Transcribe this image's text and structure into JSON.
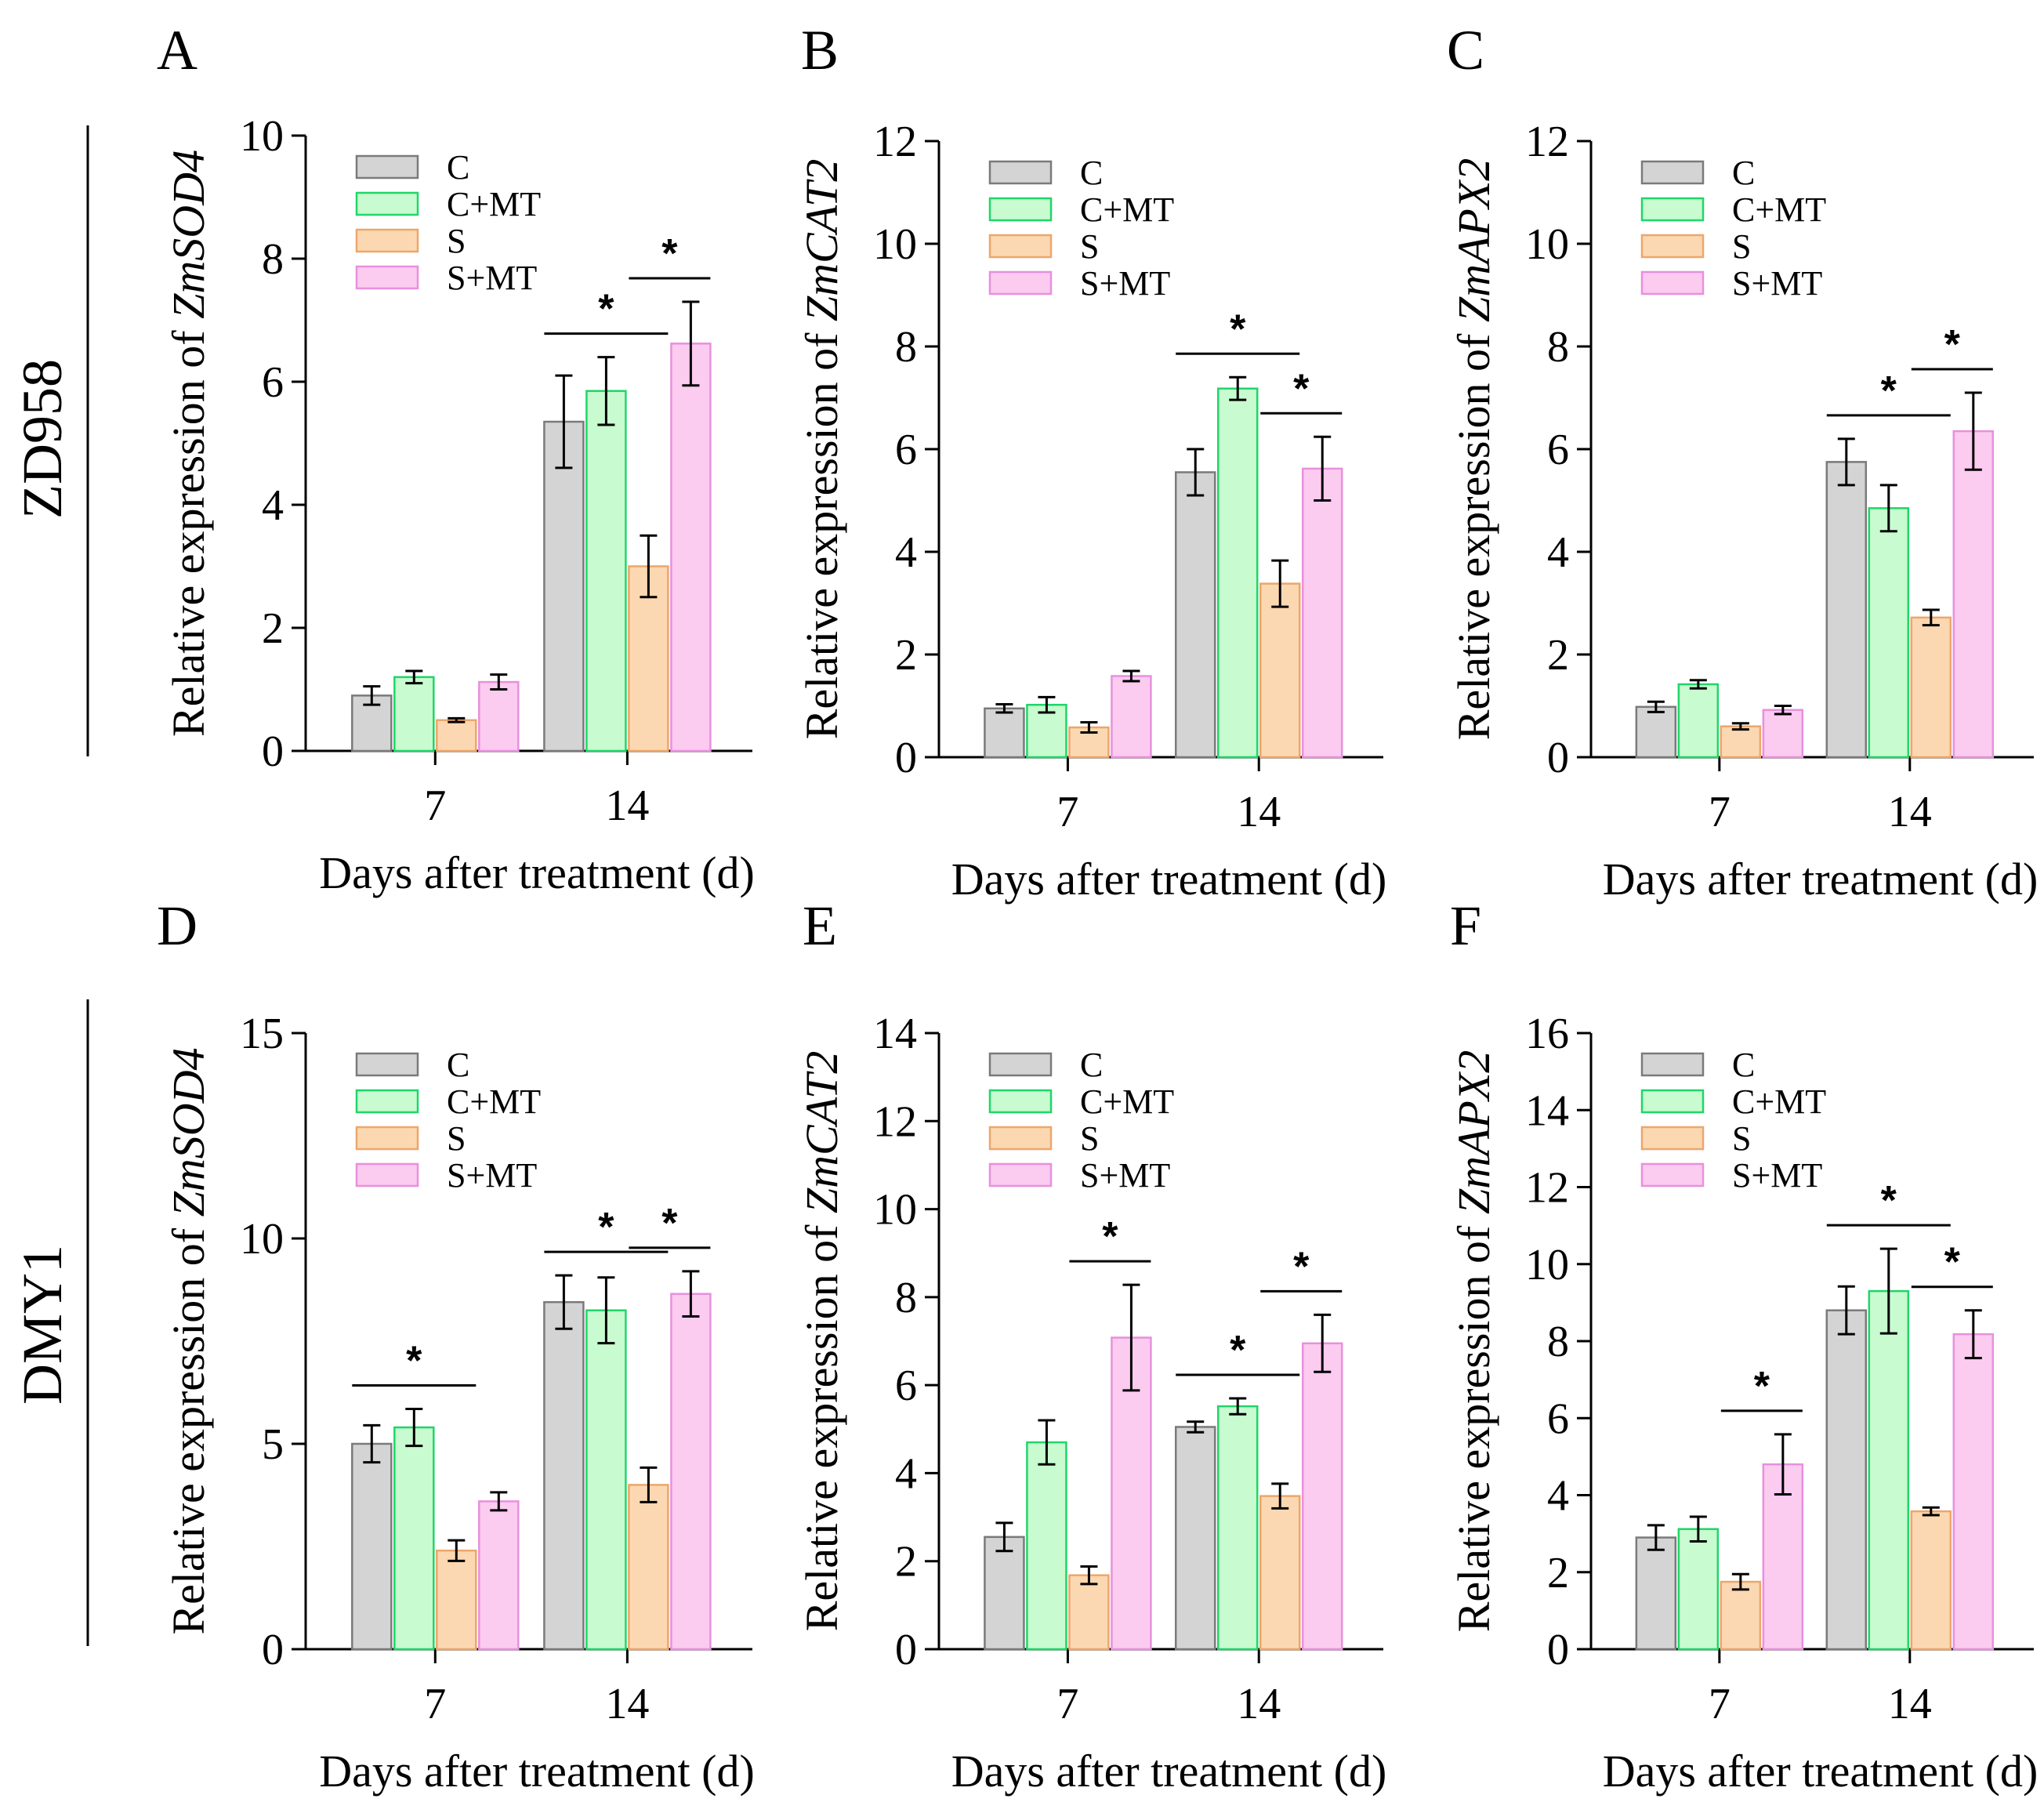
{
  "rows": [
    {
      "label": "ZD958",
      "panels": [
        0,
        1,
        2
      ]
    },
    {
      "label": "DMY1",
      "panels": [
        3,
        4,
        5
      ]
    }
  ],
  "legend": [
    {
      "label": "C",
      "fill": "#d4d4d4",
      "stroke": "#7a7a7a"
    },
    {
      "label": "C+MT",
      "fill": "#c8fbcf",
      "stroke": "#1fd66a"
    },
    {
      "label": "S",
      "fill": "#fbd8b1",
      "stroke": "#eda66b"
    },
    {
      "label": "S+MT",
      "fill": "#fbcbf0",
      "stroke": "#e890dd"
    }
  ],
  "chart_data": [
    {
      "panel": "A",
      "type": "bar",
      "ylabel_prefix": "Relative expression of ",
      "gene": "ZmSOD4",
      "xlabel": "Days after treatment (d)",
      "categories": [
        "7",
        "14"
      ],
      "ylim": [
        0,
        10
      ],
      "yticks": [
        "0",
        "2",
        "4",
        "6",
        "8",
        "10"
      ],
      "series": [
        {
          "name": "C",
          "values": [
            0.9,
            5.35
          ],
          "errors": [
            0.15,
            0.75
          ]
        },
        {
          "name": "C+MT",
          "values": [
            1.2,
            5.85
          ],
          "errors": [
            0.1,
            0.55
          ]
        },
        {
          "name": "S",
          "values": [
            0.5,
            3.0
          ],
          "errors": [
            0.03,
            0.5
          ]
        },
        {
          "name": "S+MT",
          "values": [
            1.12,
            6.62
          ],
          "errors": [
            0.12,
            0.68
          ]
        }
      ],
      "significance": [
        {
          "category": 1,
          "from": "C",
          "to": "S",
          "label": "*"
        },
        {
          "category": 1,
          "from": "S",
          "to": "S+MT",
          "label": "*"
        }
      ]
    },
    {
      "panel": "B",
      "type": "bar",
      "ylabel_prefix": "Relative expression of ",
      "gene": "ZmCAT2",
      "xlabel": "Days after treatment (d)",
      "categories": [
        "7",
        "14"
      ],
      "ylim": [
        0,
        12
      ],
      "yticks": [
        "0",
        "2",
        "4",
        "6",
        "8",
        "10",
        "12"
      ],
      "series": [
        {
          "name": "C",
          "values": [
            0.95,
            5.55
          ],
          "errors": [
            0.08,
            0.45
          ]
        },
        {
          "name": "C+MT",
          "values": [
            1.02,
            7.18
          ],
          "errors": [
            0.15,
            0.22
          ]
        },
        {
          "name": "S",
          "values": [
            0.58,
            3.38
          ],
          "errors": [
            0.1,
            0.45
          ]
        },
        {
          "name": "S+MT",
          "values": [
            1.58,
            5.62
          ],
          "errors": [
            0.1,
            0.62
          ]
        }
      ],
      "significance": [
        {
          "category": 1,
          "from": "C",
          "to": "S",
          "label": "*"
        },
        {
          "category": 1,
          "from": "S",
          "to": "S+MT",
          "label": "*"
        }
      ]
    },
    {
      "panel": "C",
      "type": "bar",
      "ylabel_prefix": "Relative expression of ",
      "gene": "ZmAPX2",
      "xlabel": "Days after treatment (d)",
      "categories": [
        "7",
        "14"
      ],
      "ylim": [
        0,
        12
      ],
      "yticks": [
        "0",
        "2",
        "4",
        "6",
        "8",
        "10",
        "12"
      ],
      "series": [
        {
          "name": "C",
          "values": [
            0.98,
            5.75
          ],
          "errors": [
            0.1,
            0.45
          ]
        },
        {
          "name": "C+MT",
          "values": [
            1.42,
            4.85
          ],
          "errors": [
            0.08,
            0.45
          ]
        },
        {
          "name": "S",
          "values": [
            0.6,
            2.72
          ],
          "errors": [
            0.06,
            0.15
          ]
        },
        {
          "name": "S+MT",
          "values": [
            0.92,
            6.35
          ],
          "errors": [
            0.08,
            0.75
          ]
        }
      ],
      "significance": [
        {
          "category": 1,
          "from": "C",
          "to": "S",
          "label": "*"
        },
        {
          "category": 1,
          "from": "S",
          "to": "S+MT",
          "label": "*"
        }
      ]
    },
    {
      "panel": "D",
      "type": "bar",
      "ylabel_prefix": "Relative expression of ",
      "gene": "ZmSOD4",
      "xlabel": "Days after treatment (d)",
      "categories": [
        "7",
        "14"
      ],
      "ylim": [
        0,
        15
      ],
      "yticks": [
        "0",
        "5",
        "10",
        "15"
      ],
      "series": [
        {
          "name": "C",
          "values": [
            5.0,
            8.45
          ],
          "errors": [
            0.45,
            0.65
          ]
        },
        {
          "name": "C+MT",
          "values": [
            5.4,
            8.25
          ],
          "errors": [
            0.45,
            0.8
          ]
        },
        {
          "name": "S",
          "values": [
            2.4,
            4.0
          ],
          "errors": [
            0.25,
            0.42
          ]
        },
        {
          "name": "S+MT",
          "values": [
            3.6,
            8.65
          ],
          "errors": [
            0.22,
            0.55
          ]
        }
      ],
      "significance": [
        {
          "category": 0,
          "from": "C",
          "to": "S",
          "label": "*"
        },
        {
          "category": 1,
          "from": "C",
          "to": "S",
          "label": "*"
        },
        {
          "category": 1,
          "from": "S",
          "to": "S+MT",
          "label": "*"
        }
      ]
    },
    {
      "panel": "E",
      "type": "bar",
      "ylabel_prefix": "Relative expression of ",
      "gene": "ZmCAT2",
      "xlabel": "Days after treatment (d)",
      "categories": [
        "7",
        "14"
      ],
      "ylim": [
        0,
        14
      ],
      "yticks": [
        "0",
        "2",
        "4",
        "6",
        "8",
        "10",
        "12",
        "14"
      ],
      "series": [
        {
          "name": "C",
          "values": [
            2.55,
            5.05
          ],
          "errors": [
            0.32,
            0.12
          ]
        },
        {
          "name": "C+MT",
          "values": [
            4.7,
            5.52
          ],
          "errors": [
            0.5,
            0.18
          ]
        },
        {
          "name": "S",
          "values": [
            1.68,
            3.48
          ],
          "errors": [
            0.2,
            0.28
          ]
        },
        {
          "name": "S+MT",
          "values": [
            7.08,
            6.95
          ],
          "errors": [
            1.2,
            0.65
          ]
        }
      ],
      "significance": [
        {
          "category": 0,
          "from": "S",
          "to": "S+MT",
          "label": "*"
        },
        {
          "category": 1,
          "from": "C",
          "to": "S",
          "label": "*"
        },
        {
          "category": 1,
          "from": "S",
          "to": "S+MT",
          "label": "*"
        }
      ]
    },
    {
      "panel": "F",
      "type": "bar",
      "ylabel_prefix": "Relative expression of ",
      "gene": "ZmAPX2",
      "xlabel": "Days after treatment (d)",
      "categories": [
        "7",
        "14"
      ],
      "ylim": [
        0,
        16
      ],
      "yticks": [
        "0",
        "2",
        "4",
        "6",
        "8",
        "10",
        "12",
        "14",
        "16"
      ],
      "series": [
        {
          "name": "C",
          "values": [
            2.9,
            8.8
          ],
          "errors": [
            0.32,
            0.62
          ]
        },
        {
          "name": "C+MT",
          "values": [
            3.12,
            9.3
          ],
          "errors": [
            0.32,
            1.1
          ]
        },
        {
          "name": "S",
          "values": [
            1.75,
            3.58
          ],
          "errors": [
            0.2,
            0.1
          ]
        },
        {
          "name": "S+MT",
          "values": [
            4.8,
            8.18
          ],
          "errors": [
            0.78,
            0.62
          ]
        }
      ],
      "significance": [
        {
          "category": 0,
          "from": "S",
          "to": "S+MT",
          "label": "*"
        },
        {
          "category": 1,
          "from": "C",
          "to": "S",
          "label": "*"
        },
        {
          "category": 1,
          "from": "S",
          "to": "S+MT",
          "label": "*"
        }
      ]
    }
  ]
}
